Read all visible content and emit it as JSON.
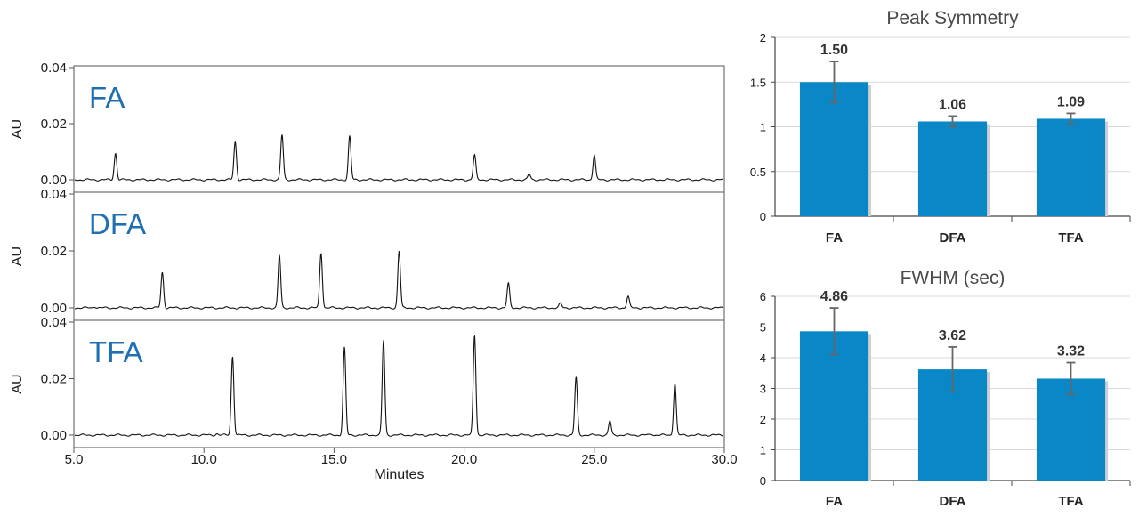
{
  "colors": {
    "accent": "#0a87c6",
    "trace": "#111111",
    "label": "#1f6fb2",
    "errorbar": "#666666",
    "grid": "#d9d9d9"
  },
  "chart_data": [
    {
      "type": "line",
      "xlabel": "Minutes",
      "ylabel": "AU",
      "xlim": [
        5.0,
        30.0
      ],
      "ylim": [
        0.0,
        0.04
      ],
      "x_ticks": [
        "5.0",
        "10.0",
        "15.0",
        "20.0",
        "25.0",
        "30.0"
      ],
      "y_ticks": [
        "0.00",
        "0.02",
        "0.04"
      ],
      "grid": false,
      "series": [
        {
          "name": "FA",
          "peaks": [
            [
              6.6,
              0.0095
            ],
            [
              11.2,
              0.0135
            ],
            [
              13.0,
              0.016
            ],
            [
              15.6,
              0.0155
            ],
            [
              20.4,
              0.0088
            ],
            [
              22.5,
              0.002
            ],
            [
              25.0,
              0.0088
            ]
          ]
        },
        {
          "name": "DFA",
          "peaks": [
            [
              5.8,
              0.0005
            ],
            [
              8.4,
              0.0125
            ],
            [
              12.9,
              0.0185
            ],
            [
              14.5,
              0.0195
            ],
            [
              17.5,
              0.02
            ],
            [
              21.7,
              0.0085
            ],
            [
              23.7,
              0.0015
            ],
            [
              26.3,
              0.004
            ]
          ]
        },
        {
          "name": "TFA",
          "peaks": [
            [
              10.5,
              0.0005
            ],
            [
              11.1,
              0.028
            ],
            [
              15.4,
              0.031
            ],
            [
              16.9,
              0.0335
            ],
            [
              20.4,
              0.0355
            ],
            [
              24.3,
              0.0205
            ],
            [
              25.6,
              0.005
            ],
            [
              27.2,
              0.0004
            ],
            [
              28.1,
              0.0185
            ]
          ]
        }
      ]
    },
    {
      "type": "bar",
      "title": "Peak Symmetry",
      "categories": [
        "FA",
        "DFA",
        "TFA"
      ],
      "values": [
        1.5,
        1.06,
        1.09
      ],
      "value_labels": [
        "1.50",
        "1.06",
        "1.09"
      ],
      "errors": [
        0.23,
        0.06,
        0.06
      ],
      "ylim": [
        0,
        2
      ],
      "y_ticks": [
        "0",
        "0.5",
        "1",
        "1.5",
        "2"
      ],
      "grid": true
    },
    {
      "type": "bar",
      "title": "FWHM (sec)",
      "categories": [
        "FA",
        "DFA",
        "TFA"
      ],
      "values": [
        4.86,
        3.62,
        3.32
      ],
      "value_labels": [
        "4.86",
        "3.62",
        "3.32"
      ],
      "errors": [
        0.76,
        0.73,
        0.52
      ],
      "ylim": [
        0,
        6
      ],
      "y_ticks": [
        "0",
        "1",
        "2",
        "3",
        "4",
        "5",
        "6"
      ],
      "grid": true
    }
  ]
}
